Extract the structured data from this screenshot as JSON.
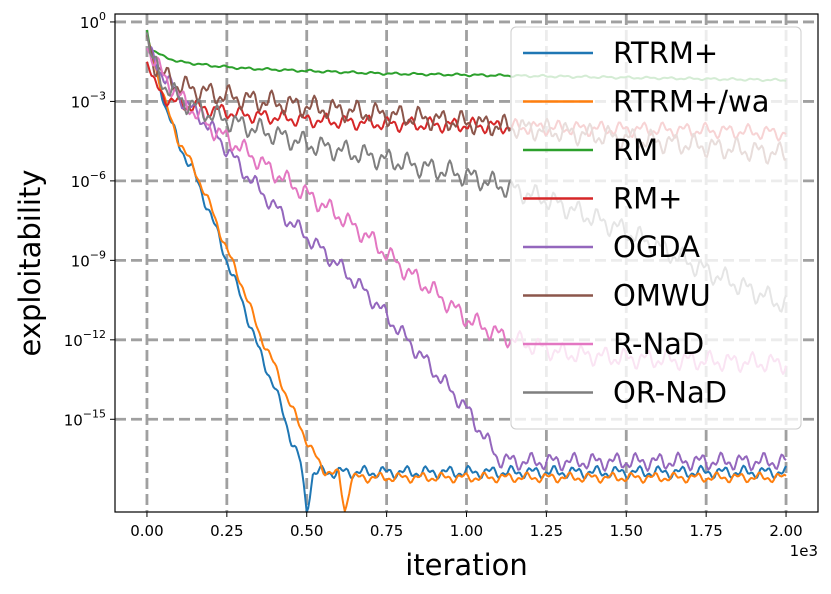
{
  "chart_data": {
    "type": "line",
    "title": "",
    "xlabel": "iteration",
    "ylabel": "exploitability",
    "x_multiplier_label": "1e3",
    "xlim": [
      -0.1,
      2.1
    ],
    "ylim_log10": [
      -18.5,
      0.3
    ],
    "y_scale": "log",
    "grid": true,
    "legend_position": "top-right",
    "x_ticks": [
      0.0,
      0.25,
      0.5,
      0.75,
      1.0,
      1.25,
      1.5,
      1.75,
      2.0
    ],
    "x_tick_labels": [
      "0.00",
      "0.25",
      "0.50",
      "0.75",
      "1.00",
      "1.25",
      "1.50",
      "1.75",
      "2.00"
    ],
    "y_ticks_log10": [
      0,
      -3,
      -6,
      -9,
      -12,
      -15
    ],
    "y_tick_labels": [
      {
        "base": "10",
        "exp": "0"
      },
      {
        "base": "10",
        "exp": "−3"
      },
      {
        "base": "10",
        "exp": "−6"
      },
      {
        "base": "10",
        "exp": "−9"
      },
      {
        "base": "10",
        "exp": "−12"
      },
      {
        "base": "10",
        "exp": "−15"
      }
    ],
    "series": [
      {
        "name": "RTRM+",
        "color": "#1f77b4",
        "x": [
          0.0,
          0.03,
          0.06,
          0.1,
          0.15,
          0.2,
          0.25,
          0.3,
          0.35,
          0.4,
          0.45,
          0.48,
          0.5,
          0.52,
          2.0
        ],
        "log10_y": [
          -0.5,
          -1.8,
          -3.3,
          -4.6,
          -5.8,
          -7.3,
          -9.0,
          -10.6,
          -12.4,
          -13.8,
          -15.7,
          -16.6,
          -18.5,
          -17.0,
          -17.0
        ],
        "wiggle": 0.25
      },
      {
        "name": "RTRM+/wa",
        "color": "#ff7f0e",
        "x": [
          0.0,
          0.03,
          0.06,
          0.1,
          0.15,
          0.2,
          0.25,
          0.3,
          0.35,
          0.4,
          0.45,
          0.5,
          0.55,
          0.6,
          0.62,
          0.64,
          2.0
        ],
        "log10_y": [
          -0.5,
          -1.8,
          -3.2,
          -4.5,
          -5.6,
          -7.0,
          -8.6,
          -10.0,
          -11.7,
          -13.0,
          -14.5,
          -15.8,
          -16.9,
          -17.1,
          -18.5,
          -17.2,
          -17.2
        ],
        "wiggle": 0.2
      },
      {
        "name": "RM",
        "color": "#2ca02c",
        "x": [
          0.0,
          0.01,
          0.05,
          0.1,
          0.2,
          0.3,
          0.5,
          0.75,
          1.0,
          1.25,
          1.5,
          1.75,
          2.0
        ],
        "log10_y": [
          -0.3,
          -1.0,
          -1.3,
          -1.5,
          -1.65,
          -1.75,
          -1.85,
          -1.95,
          -2.0,
          -2.05,
          -2.1,
          -2.15,
          -2.2
        ],
        "wiggle": 0.05
      },
      {
        "name": "RM+",
        "color": "#d62728",
        "x": [
          0.0,
          0.02,
          0.05,
          0.1,
          0.2,
          0.3,
          0.5,
          0.75,
          1.0,
          1.25,
          1.5,
          1.75,
          2.0
        ],
        "log10_y": [
          -1.5,
          -2.3,
          -2.8,
          -3.1,
          -3.3,
          -3.5,
          -3.7,
          -3.85,
          -3.9,
          -4.0,
          -4.05,
          -4.1,
          -4.2
        ],
        "wiggle": 0.3
      },
      {
        "name": "OGDA",
        "color": "#9467bd",
        "x": [
          0.0,
          0.05,
          0.1,
          0.2,
          0.3,
          0.4,
          0.5,
          0.6,
          0.7,
          0.8,
          0.9,
          1.0,
          1.1,
          1.15,
          1.3,
          1.6,
          2.0
        ],
        "log10_y": [
          -1.0,
          -2.0,
          -2.8,
          -4.0,
          -5.6,
          -7.0,
          -8.1,
          -9.2,
          -10.4,
          -11.8,
          -13.2,
          -14.6,
          -16.5,
          -16.6,
          -16.6,
          -16.6,
          -16.6
        ],
        "wiggle": 0.35
      },
      {
        "name": "OMWU",
        "color": "#8c564b",
        "x": [
          0.0,
          0.02,
          0.05,
          0.1,
          0.2,
          0.3,
          0.5,
          0.75,
          1.0,
          1.25,
          1.5,
          1.75,
          2.0
        ],
        "log10_y": [
          -0.5,
          -1.5,
          -2.0,
          -2.4,
          -2.7,
          -2.9,
          -3.2,
          -3.5,
          -3.8,
          -4.1,
          -4.4,
          -4.7,
          -5.0
        ],
        "wiggle": 0.45
      },
      {
        "name": "R-NaD",
        "color": "#e377c2",
        "x": [
          0.0,
          0.05,
          0.1,
          0.2,
          0.3,
          0.4,
          0.5,
          0.6,
          0.7,
          0.8,
          0.9,
          1.0,
          1.1,
          1.2,
          1.3,
          1.5,
          1.75,
          2.0
        ],
        "log10_y": [
          -1.0,
          -2.0,
          -2.8,
          -4.0,
          -4.8,
          -5.7,
          -6.5,
          -7.3,
          -8.2,
          -9.3,
          -10.2,
          -11.2,
          -11.8,
          -12.2,
          -12.5,
          -12.7,
          -12.8,
          -12.9
        ],
        "wiggle": 0.4
      },
      {
        "name": "OR-NaD",
        "color": "#7f7f7f",
        "x": [
          0.0,
          0.01,
          0.05,
          0.1,
          0.2,
          0.3,
          0.5,
          0.75,
          1.0,
          1.25,
          1.5,
          1.75,
          2.0
        ],
        "log10_y": [
          -0.4,
          -1.2,
          -2.3,
          -2.9,
          -3.5,
          -3.9,
          -4.6,
          -5.2,
          -5.8,
          -6.7,
          -7.9,
          -9.4,
          -10.7
        ],
        "wiggle": 0.45
      }
    ]
  }
}
